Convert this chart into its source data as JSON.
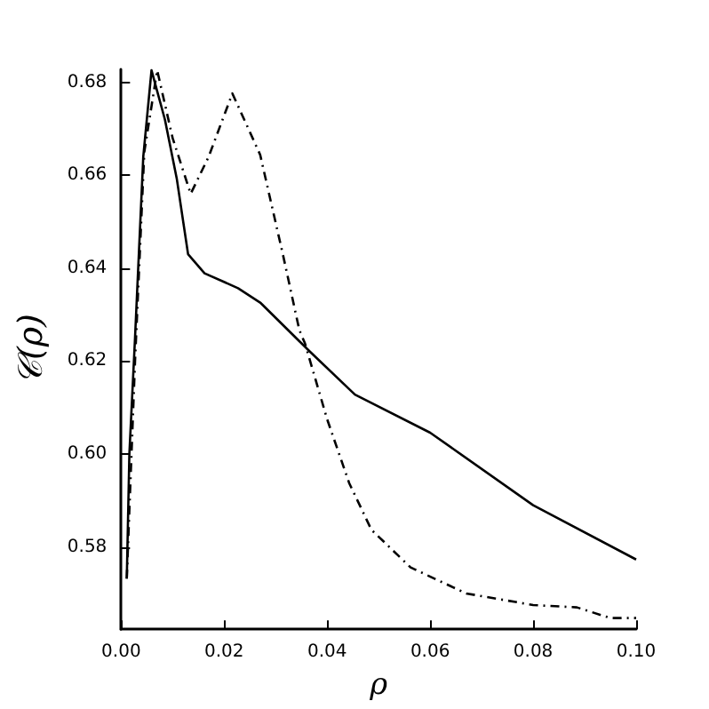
{
  "chart_data": {
    "type": "line",
    "xlabel": "ρ",
    "ylabel": "𝒞(ρ)",
    "xlim": [
      0,
      0.1
    ],
    "ylim": [
      0.5623,
      0.6828
    ],
    "xticks": [
      {
        "value": 0,
        "label": "0.00"
      },
      {
        "value": 0.02,
        "label": "0.02"
      },
      {
        "value": 0.04,
        "label": "0.04"
      },
      {
        "value": 0.06,
        "label": "0.06"
      },
      {
        "value": 0.08,
        "label": "0.08"
      },
      {
        "value": 0.1,
        "label": "0.10"
      }
    ],
    "yticks": [
      0.58,
      {
        "value": 0.6,
        "label": "0.60"
      },
      0.62,
      0.64,
      0.66,
      0.68
    ],
    "grid": false,
    "marker": "none",
    "series": [
      {
        "color": "#000000",
        "line_style": "solid",
        "x": [
          0.0011,
          0.0016,
          0.0027,
          0.0043,
          0.0059,
          0.0085,
          0.0108,
          0.013,
          0.0162,
          0.0227,
          0.027,
          0.0367,
          0.0454,
          0.06,
          0.08,
          0.1
        ],
        "values": [
          0.5732,
          0.6,
          0.625,
          0.664,
          0.6826,
          0.672,
          0.6593,
          0.643,
          0.6389,
          0.6357,
          0.6326,
          0.622,
          0.6128,
          0.6046,
          0.589,
          0.5773
        ]
      },
      {
        "color": "#000000",
        "line_style": "dashed",
        "x": [
          0.0011,
          0.0027,
          0.0045,
          0.007,
          0.01,
          0.0135,
          0.017,
          0.0216,
          0.027,
          0.0314,
          0.0346,
          0.0357,
          0.04,
          0.0443,
          0.0486,
          0.0562,
          0.067,
          0.08,
          0.0885,
          0.095,
          0.1
        ],
        "values": [
          0.5732,
          0.62,
          0.665,
          0.6826,
          0.668,
          0.656,
          0.664,
          0.6776,
          0.6644,
          0.643,
          0.6267,
          0.6238,
          0.6075,
          0.5937,
          0.5837,
          0.5756,
          0.57,
          0.5675,
          0.567,
          0.5647,
          0.5647
        ]
      }
    ]
  }
}
